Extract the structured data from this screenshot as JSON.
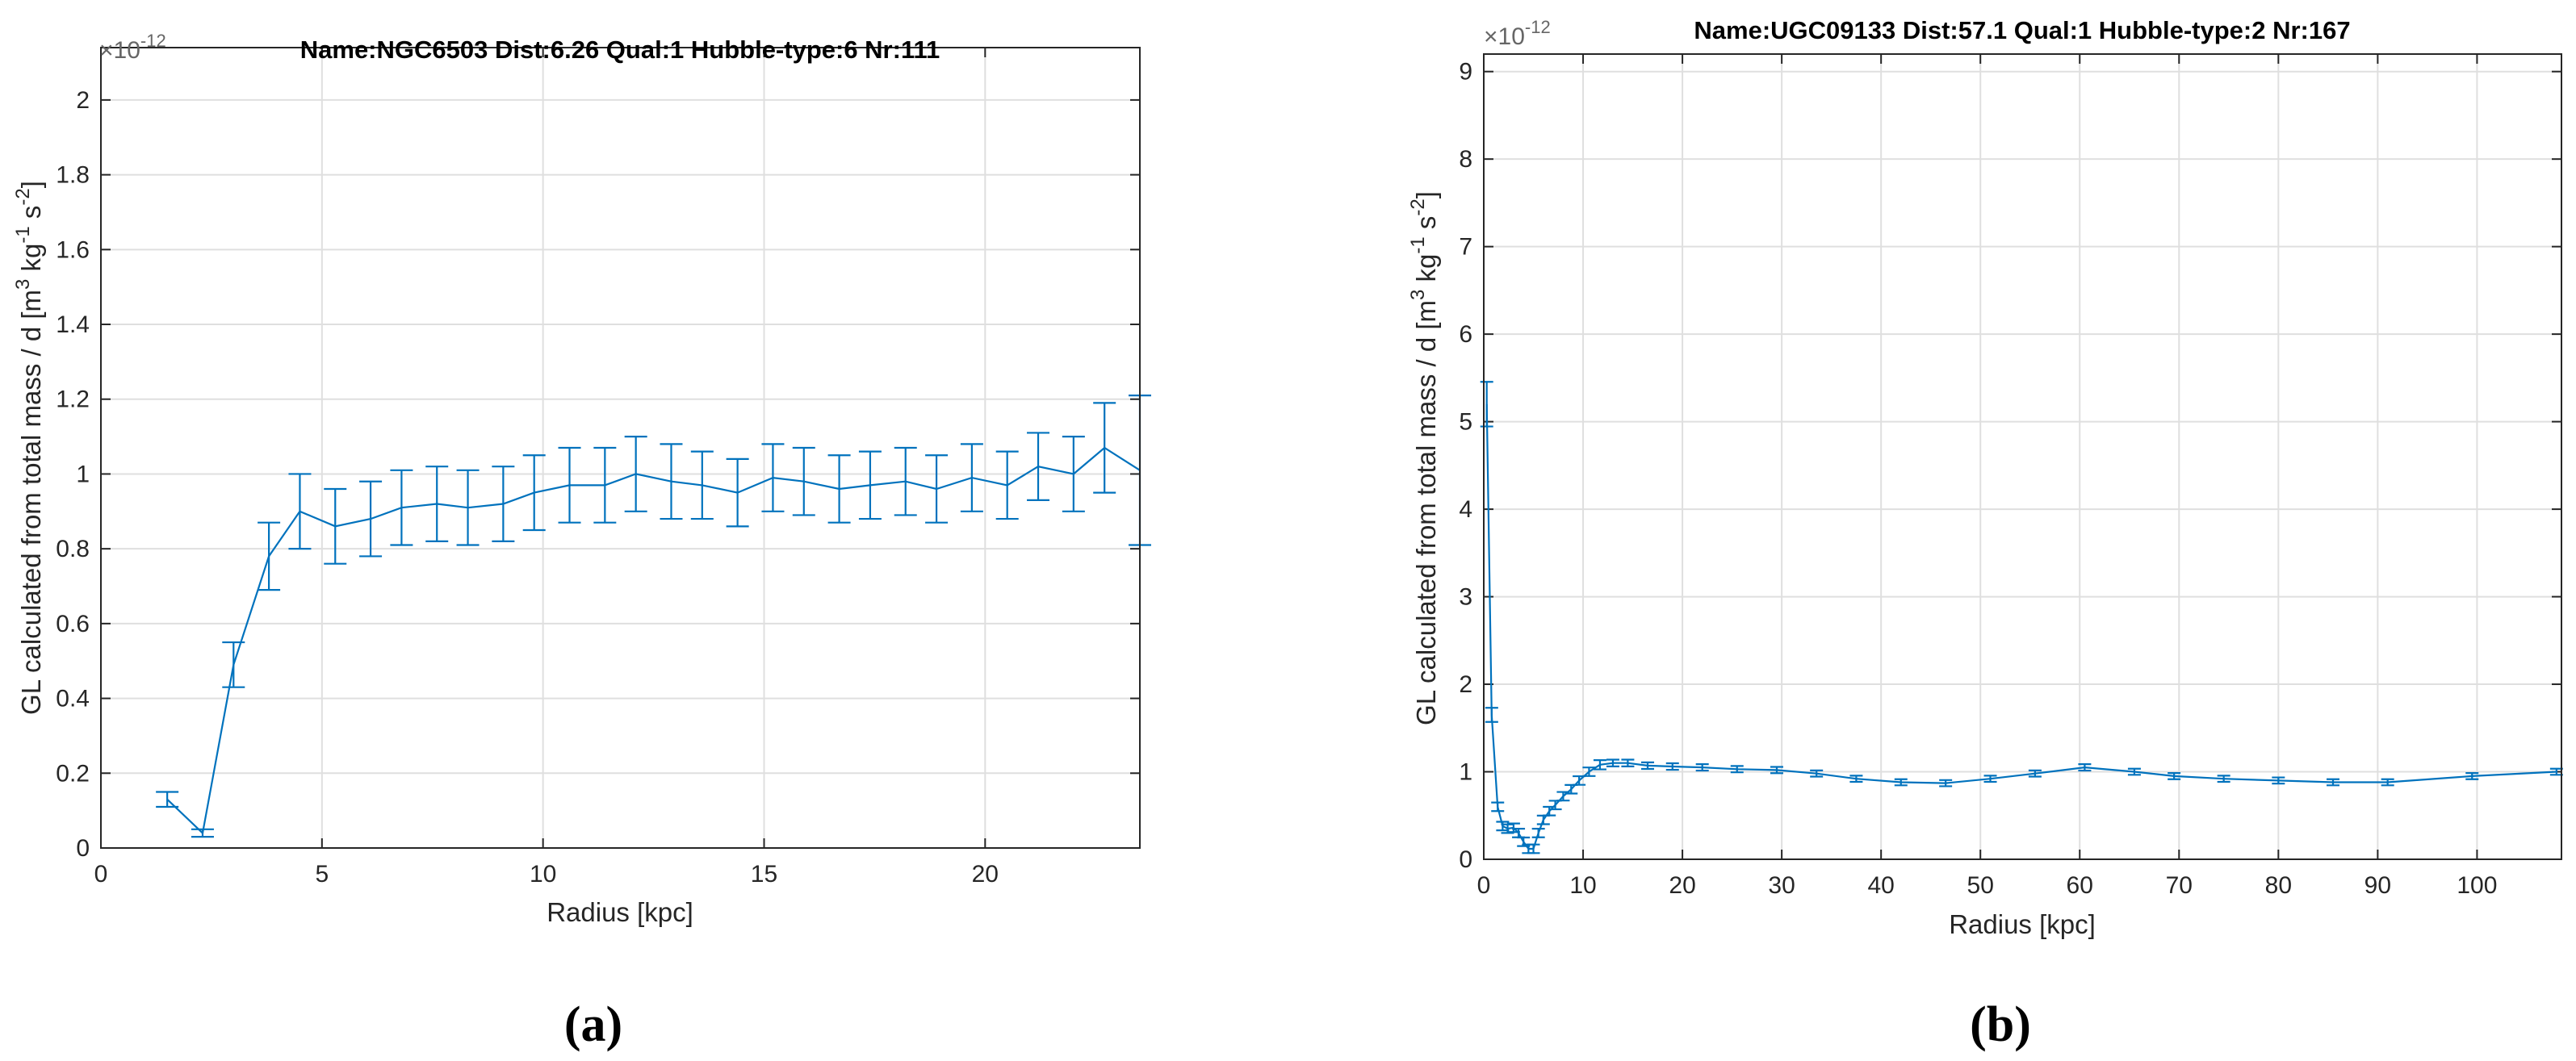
{
  "charts": [
    {
      "title": "Name:NGC6503 Dist:6.26 Qual:1 Hubble-type:6 Nr:111",
      "exponent_base": "×10",
      "exponent_power": "-12",
      "ylabel": "GL calculated from total mass / d [m",
      "ylabel_sup1": "3",
      "ylabel_mid1": " kg",
      "ylabel_sup2": "-1",
      "ylabel_mid2": " s",
      "ylabel_sup3": "-2",
      "ylabel_end": "]",
      "xlabel": "Radius [kpc]",
      "caption": "(a)",
      "x_tick_labels": [
        "0",
        "5",
        "10",
        "15",
        "20"
      ],
      "y_tick_labels": [
        "0",
        "0.2",
        "0.4",
        "0.6",
        "0.8",
        "1",
        "1.2",
        "1.4",
        "1.6",
        "1.8",
        "2"
      ]
    },
    {
      "title": "Name:UGC09133 Dist:57.1 Qual:1 Hubble-type:2 Nr:167",
      "exponent_base": "×10",
      "exponent_power": "-12",
      "ylabel": "GL calculated from total mass / d [m",
      "ylabel_sup1": "3",
      "ylabel_mid1": " kg",
      "ylabel_sup2": "-1",
      "ylabel_mid2": " s",
      "ylabel_sup3": "-2",
      "ylabel_end": "]",
      "xlabel": "Radius [kpc]",
      "caption": "(b)",
      "x_tick_labels": [
        "0",
        "10",
        "20",
        "30",
        "40",
        "50",
        "60",
        "70",
        "80",
        "90",
        "100"
      ],
      "y_tick_labels": [
        "0",
        "1",
        "2",
        "3",
        "4",
        "5",
        "6",
        "7",
        "8",
        "9"
      ]
    }
  ],
  "chart_data": [
    {
      "type": "line",
      "title": "Name:NGC6503 Dist:6.26 Qual:1 Hubble-type:6 Nr:111",
      "xlabel": "Radius [kpc]",
      "ylabel": "GL calculated from total mass / d [m^3 kg^-1 s^-2]",
      "y_scale_factor": "1e-12",
      "xlim": [
        0,
        23.5
      ],
      "ylim": [
        0,
        2.14
      ],
      "x_ticks": [
        0,
        5,
        10,
        15,
        20
      ],
      "y_ticks": [
        0,
        0.2,
        0.4,
        0.6,
        0.8,
        1,
        1.2,
        1.4,
        1.6,
        1.8,
        2
      ],
      "grid": true,
      "color": "#0072bd",
      "error_bars": true,
      "series": [
        {
          "x": [
            1.5,
            2.3,
            3.0,
            3.8,
            4.5,
            5.3,
            6.1,
            6.8,
            7.6,
            8.3,
            9.1,
            9.8,
            10.6,
            11.4,
            12.1,
            12.9,
            13.6,
            14.4,
            15.2,
            15.9,
            16.7,
            17.4,
            18.2,
            18.9,
            19.7,
            20.5,
            21.2,
            22.0,
            22.7,
            23.5
          ],
          "y": [
            0.13,
            0.04,
            0.49,
            0.78,
            0.9,
            0.86,
            0.88,
            0.91,
            0.92,
            0.91,
            0.92,
            0.95,
            0.97,
            0.97,
            1.0,
            0.98,
            0.97,
            0.95,
            0.99,
            0.98,
            0.96,
            0.97,
            0.98,
            0.96,
            0.99,
            0.97,
            1.02,
            1.0,
            1.07,
            1.01
          ],
          "err": [
            0.02,
            0.01,
            0.06,
            0.09,
            0.1,
            0.1,
            0.1,
            0.1,
            0.1,
            0.1,
            0.1,
            0.1,
            0.1,
            0.1,
            0.1,
            0.1,
            0.09,
            0.09,
            0.09,
            0.09,
            0.09,
            0.09,
            0.09,
            0.09,
            0.09,
            0.09,
            0.09,
            0.1,
            0.12,
            0.2
          ]
        }
      ]
    },
    {
      "type": "line",
      "title": "Name:UGC09133 Dist:57.1 Qual:1 Hubble-type:2 Nr:167",
      "xlabel": "Radius [kpc]",
      "ylabel": "GL calculated from total mass / d [m^3 kg^-1 s^-2]",
      "y_scale_factor": "1e-12",
      "xlim": [
        0,
        108.5
      ],
      "ylim": [
        0,
        9.2
      ],
      "x_ticks": [
        0,
        10,
        20,
        30,
        40,
        50,
        60,
        70,
        80,
        90,
        100
      ],
      "y_ticks": [
        0,
        1,
        2,
        3,
        4,
        5,
        6,
        7,
        8,
        9
      ],
      "grid": true,
      "color": "#0072bd",
      "error_bars": true,
      "series": [
        {
          "x": [
            0.3,
            0.8,
            1.4,
            1.9,
            2.4,
            3.0,
            3.5,
            4.0,
            4.5,
            5.0,
            5.5,
            6.0,
            6.6,
            7.2,
            8.0,
            8.8,
            9.6,
            10.6,
            11.7,
            13.0,
            14.5,
            16.5,
            19.0,
            22.0,
            25.5,
            29.5,
            33.5,
            37.5,
            42.0,
            46.5,
            51.0,
            55.5,
            60.5,
            65.5,
            69.5,
            74.5,
            80.0,
            85.5,
            91.0,
            99.5,
            108.0
          ],
          "y": [
            5.2,
            1.65,
            0.6,
            0.38,
            0.35,
            0.36,
            0.3,
            0.2,
            0.12,
            0.12,
            0.3,
            0.45,
            0.55,
            0.62,
            0.72,
            0.8,
            0.9,
            1.0,
            1.08,
            1.1,
            1.1,
            1.07,
            1.06,
            1.05,
            1.03,
            1.02,
            0.98,
            0.92,
            0.88,
            0.87,
            0.92,
            0.98,
            1.05,
            1.0,
            0.95,
            0.92,
            0.9,
            0.88,
            0.88,
            0.95,
            1.0
          ]
        }
      ]
    }
  ]
}
